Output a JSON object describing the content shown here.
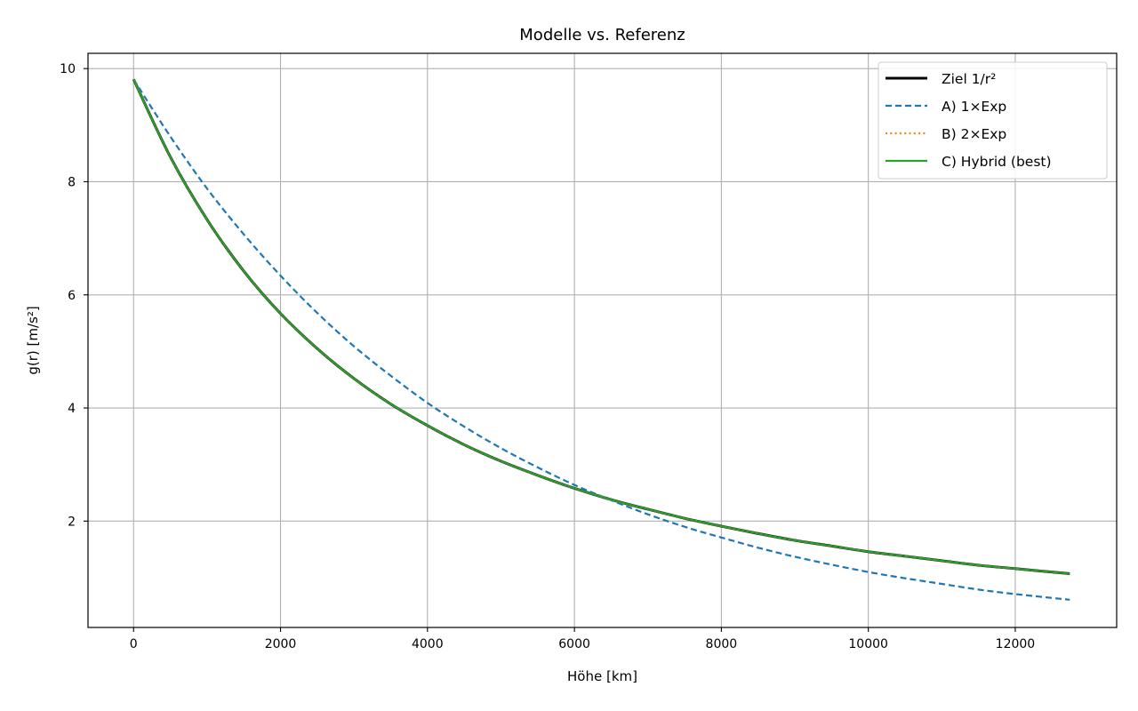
{
  "chart_data": {
    "type": "line",
    "title": "Modelle vs. Referenz",
    "xlabel": "Höhe [km]",
    "ylabel": "g(r) [m/s²]",
    "xlim": [
      -620,
      13380
    ],
    "ylim": [
      0.12,
      10.27
    ],
    "x_ticks": [
      0,
      2000,
      4000,
      6000,
      8000,
      10000,
      12000
    ],
    "y_ticks": [
      2,
      4,
      6,
      8,
      10
    ],
    "grid": true,
    "legend_position": "top-right",
    "series": [
      {
        "name": "Ziel 1/r²",
        "color": "#000000",
        "line_style": "solid",
        "x": [
          0,
          500,
          1000,
          1500,
          2000,
          2500,
          3000,
          3500,
          4000,
          4500,
          5000,
          5500,
          6000,
          6500,
          7000,
          7500,
          8000,
          8500,
          9000,
          9500,
          10000,
          10500,
          11000,
          11500,
          12000,
          12742
        ],
        "y": [
          9.81,
          8.44,
          7.33,
          6.42,
          5.67,
          5.05,
          4.52,
          4.07,
          3.69,
          3.35,
          3.06,
          2.81,
          2.58,
          2.38,
          2.21,
          2.05,
          1.91,
          1.78,
          1.66,
          1.56,
          1.46,
          1.38,
          1.3,
          1.22,
          1.16,
          1.07
        ]
      },
      {
        "name": "A) 1×Exp",
        "color": "#1f77b4",
        "line_style": "dashed",
        "x": [
          0,
          500,
          1000,
          1500,
          2000,
          2500,
          3000,
          3500,
          4000,
          4500,
          5000,
          5500,
          6000,
          6500,
          7000,
          7500,
          8000,
          8500,
          9000,
          9500,
          10000,
          10500,
          11000,
          11500,
          12000,
          12742
        ],
        "y": [
          9.81,
          8.8,
          7.88,
          7.07,
          6.34,
          5.68,
          5.09,
          4.57,
          4.09,
          3.67,
          3.29,
          2.95,
          2.64,
          2.37,
          2.12,
          1.9,
          1.71,
          1.53,
          1.37,
          1.23,
          1.1,
          0.99,
          0.89,
          0.79,
          0.71,
          0.61
        ]
      },
      {
        "name": "B) 2×Exp",
        "color": "#ff7f0e",
        "line_style": "dotted",
        "x": [
          0,
          500,
          1000,
          1500,
          2000,
          2500,
          3000,
          3500,
          4000,
          4500,
          5000,
          5500,
          6000,
          6500,
          7000,
          7500,
          8000,
          8500,
          9000,
          9500,
          10000,
          10500,
          11000,
          11500,
          12000,
          12742
        ],
        "y": [
          9.81,
          8.44,
          7.33,
          6.42,
          5.67,
          5.05,
          4.52,
          4.07,
          3.69,
          3.35,
          3.06,
          2.81,
          2.58,
          2.38,
          2.21,
          2.05,
          1.91,
          1.78,
          1.66,
          1.56,
          1.46,
          1.38,
          1.3,
          1.22,
          1.16,
          1.07
        ]
      },
      {
        "name": "C) Hybrid (best)",
        "color": "#2ca02c",
        "line_style": "solid",
        "x": [
          0,
          500,
          1000,
          1500,
          2000,
          2500,
          3000,
          3500,
          4000,
          4500,
          5000,
          5500,
          6000,
          6500,
          7000,
          7500,
          8000,
          8500,
          9000,
          9500,
          10000,
          10500,
          11000,
          11500,
          12000,
          12742
        ],
        "y": [
          9.81,
          8.44,
          7.33,
          6.42,
          5.67,
          5.05,
          4.52,
          4.07,
          3.69,
          3.35,
          3.06,
          2.81,
          2.58,
          2.38,
          2.21,
          2.05,
          1.91,
          1.78,
          1.66,
          1.56,
          1.46,
          1.38,
          1.3,
          1.22,
          1.16,
          1.07
        ]
      }
    ]
  }
}
